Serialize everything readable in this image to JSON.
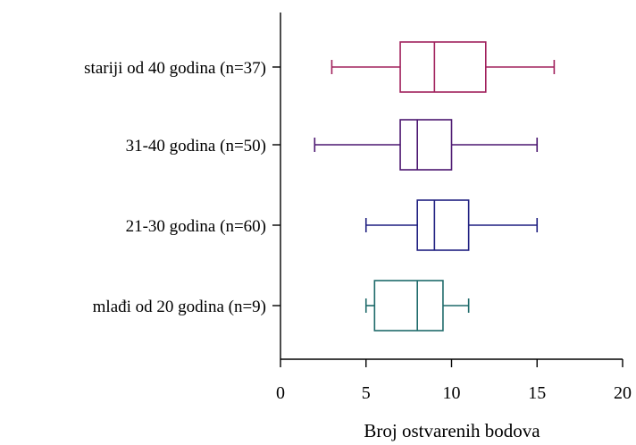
{
  "chart_data": {
    "type": "boxplot",
    "orientation": "horizontal",
    "title": "",
    "xlabel": "Broj ostvarenih bodova",
    "ylabel": "",
    "xlim": [
      0,
      20
    ],
    "xticks": [
      0,
      5,
      10,
      15,
      20
    ],
    "xtick_labels": [
      "0",
      "5",
      "10",
      "15",
      "20"
    ],
    "grid": false,
    "legend": "none",
    "categories": [
      "stariji od 40 godina (n=37)",
      "31-40 godina (n=50)",
      "21-30 godina (n=60)",
      "mlađi od 20 godina (n=9)"
    ],
    "boxes": [
      {
        "min": 3,
        "q1": 7,
        "median": 9,
        "q3": 12,
        "max": 16,
        "color": "#A0205C"
      },
      {
        "min": 2,
        "q1": 7,
        "median": 8,
        "q3": 10,
        "max": 15,
        "color": "#4B1670"
      },
      {
        "min": 5,
        "q1": 8,
        "median": 9,
        "q3": 11,
        "max": 15,
        "color": "#1F1F80"
      },
      {
        "min": 5,
        "q1": 5.5,
        "median": 8,
        "q3": 9.5,
        "max": 11,
        "color": "#1E6A6A"
      }
    ]
  }
}
